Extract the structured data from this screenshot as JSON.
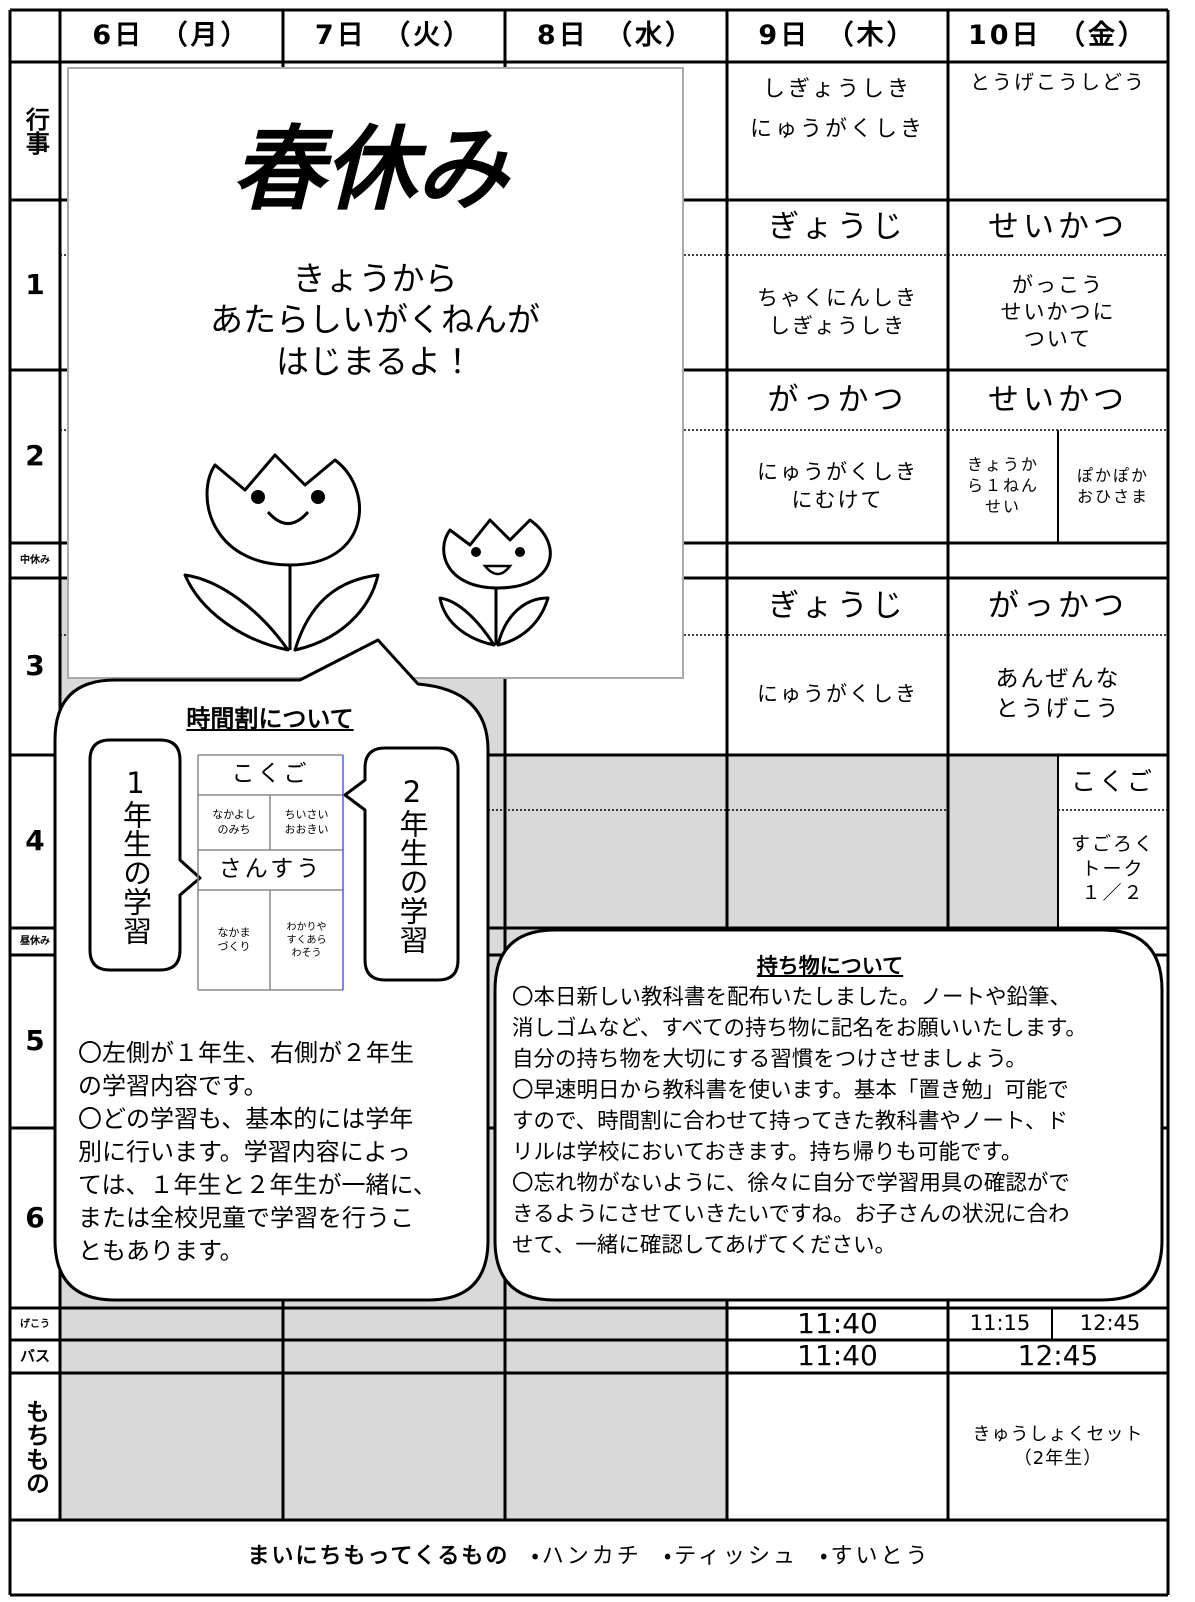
{
  "days": [
    "6日　（月）",
    "7日　（火）",
    "8日　（水）",
    "9日　（木）",
    "10日　（金）"
  ],
  "periods": [
    "行事",
    "1",
    "2",
    "中休み",
    "3",
    "4",
    "昼休み",
    "5",
    "6",
    "げこう",
    "バス",
    "もちもの"
  ],
  "thursday": {
    "event": [
      "しぎょうしき",
      "にゅうがくしき"
    ],
    "period1": {
      "subject": "ぎょうじ",
      "content": [
        "ちゃくにんしき",
        "しぎょうしき"
      ]
    },
    "period2": {
      "subject": "がっかつ",
      "content": [
        "にゅうがくしき",
        "にむけて"
      ]
    },
    "period3": {
      "subject": "ぎょうじ",
      "content": [
        "にゅうがくしき"
      ]
    },
    "dismissal": "11:40",
    "bus": "11:40"
  },
  "friday": {
    "event": [
      "とうげこうしどう"
    ],
    "period1": {
      "subject": "せいかつ",
      "content": [
        "がっこう",
        "せいかつに",
        "ついて"
      ]
    },
    "period2": {
      "subject": "せいかつ",
      "content_left": [
        "きょうか",
        "ら１ねん",
        "せい"
      ],
      "content_right": [
        "ぽかぽか",
        "おひさま"
      ]
    },
    "period3": {
      "subject": "がっかつ",
      "content": [
        "あんぜんな",
        "とうげこう"
      ]
    },
    "period4": {
      "subject": "こくご",
      "content": [
        "すごろく",
        "トーク",
        "１／２"
      ]
    },
    "dismissal": [
      "11:15",
      "12:45"
    ],
    "bus": "12:45",
    "belongings": [
      "きゅうしょくセット",
      "（2年生）"
    ]
  },
  "spring_break": {
    "title": "春休み",
    "message": [
      "きょうから",
      "あたらしいがくねんが",
      "はじまるよ！"
    ]
  },
  "timetable_note": {
    "title": "時間割について",
    "grade1_label": "1年生の学習",
    "grade2_label": "2年生の学習",
    "sample": {
      "subject1": "こくご",
      "grade1_topic1": [
        "なかよし",
        "のみち"
      ],
      "grade2_topic1": [
        "ちいさい",
        "おおきい"
      ],
      "subject2": "さんすう",
      "grade1_topic2": [
        "なかま",
        "づくり"
      ],
      "grade2_topic2": [
        "わかりや",
        "すくあら",
        "わそう"
      ]
    },
    "notes": [
      "〇左側が１年生、右側が２年生",
      "の学習内容です。",
      "〇どの学習も、基本的には学年",
      "別に行います。学習内容によっ",
      "ては、１年生と２年生が一緒に、",
      "または全校児童で学習を行うこ",
      "ともあります。"
    ]
  },
  "belongings_note": {
    "title": "持ち物について",
    "notes": [
      "〇本日新しい教科書を配布いたしました。ノートや鉛筆、",
      "消しゴムなど、すべての持ち物に記名をお願いいたします。",
      "自分の持ち物を大切にする習慣をつけさせましょう。",
      "〇早速明日から教科書を使います。基本「置き勉」可能で",
      "すので、時間割に合わせて持ってきた教科書やノート、ド",
      "リルは学校においておきます。持ち帰りも可能です。",
      "〇忘れ物がないように、徐々に自分で学習用具の確認がで",
      "きるようにさせていきたいですね。お子さんの状況に合わ",
      "せて、一緒に確認してあげてください。"
    ]
  },
  "footer": {
    "label": "まいにちもってくるもの",
    "items": [
      "・ハンカチ",
      "・ティッシュ",
      "・すいとう"
    ]
  }
}
